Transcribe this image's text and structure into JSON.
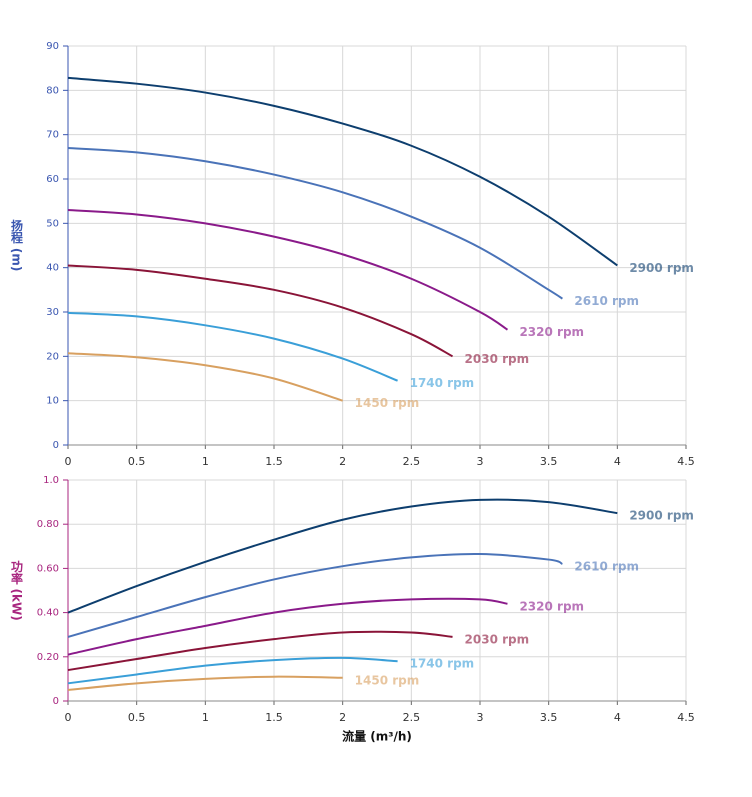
{
  "chart_data": [
    {
      "type": "line",
      "y_label": "扬程 (m)",
      "axis_color": "#3a56b0",
      "xlim": [
        0,
        4.5
      ],
      "xticks": [
        0,
        0.5,
        1,
        1.5,
        2,
        2.5,
        3,
        3.5,
        4,
        4.5
      ],
      "ylim": [
        0,
        90
      ],
      "yticks": [
        0,
        10,
        20,
        30,
        40,
        50,
        60,
        70,
        80,
        90
      ],
      "grid": true,
      "series": [
        {
          "name": "2900 rpm",
          "color": "#0d3e6e",
          "x": [
            0,
            0.5,
            1,
            1.5,
            2,
            2.5,
            3,
            3.5,
            4
          ],
          "values": [
            82.8,
            81.5,
            79.5,
            76.5,
            72.5,
            67.5,
            60.5,
            51.5,
            40.5
          ]
        },
        {
          "name": "2610 rpm",
          "color": "#4a73b8",
          "x": [
            0,
            0.5,
            1,
            1.5,
            2,
            2.5,
            3,
            3.5,
            3.6
          ],
          "values": [
            67,
            66,
            64,
            61,
            57,
            51.5,
            44.5,
            35,
            33
          ]
        },
        {
          "name": "2320 rpm",
          "color": "#8a1a8a",
          "x": [
            0,
            0.5,
            1,
            1.5,
            2,
            2.5,
            3,
            3.2
          ],
          "values": [
            53,
            52,
            50,
            47,
            43,
            37.5,
            30,
            26
          ]
        },
        {
          "name": "2030 rpm",
          "color": "#8a1438",
          "x": [
            0,
            0.5,
            1,
            1.5,
            2,
            2.5,
            2.8
          ],
          "values": [
            40.5,
            39.5,
            37.5,
            35,
            31,
            25,
            20
          ]
        },
        {
          "name": "1740 rpm",
          "color": "#3a9fd8",
          "x": [
            0,
            0.5,
            1,
            1.5,
            2,
            2.4
          ],
          "values": [
            29.8,
            29,
            27,
            24,
            19.5,
            14.5
          ]
        },
        {
          "name": "1450 rpm",
          "color": "#d8a060",
          "x": [
            0,
            0.5,
            1,
            1.5,
            2
          ],
          "values": [
            20.7,
            19.8,
            18,
            15,
            10
          ]
        }
      ]
    },
    {
      "type": "line",
      "y_label": "功率 (kW)",
      "x_label": "流量 (m³/h)",
      "axis_color": "#a8267f",
      "xlim": [
        0,
        4.5
      ],
      "xticks": [
        0,
        0.5,
        1,
        1.5,
        2,
        2.5,
        3,
        3.5,
        4,
        4.5
      ],
      "ylim": [
        0,
        1
      ],
      "yticks": [
        0,
        {
          "value": 0.2,
          "label": "0.20"
        },
        {
          "value": 0.4,
          "label": "0.40"
        },
        {
          "value": 0.6,
          "label": "0.60"
        },
        {
          "value": 0.8,
          "label": "0.80"
        },
        {
          "value": 1,
          "label": "1.0"
        }
      ],
      "grid": true,
      "series": [
        {
          "name": "2900 rpm",
          "color": "#0d3e6e",
          "x": [
            0,
            0.5,
            1,
            1.5,
            2,
            2.5,
            3,
            3.5,
            4
          ],
          "values": [
            0.4,
            0.52,
            0.63,
            0.73,
            0.82,
            0.88,
            0.91,
            0.9,
            0.85
          ]
        },
        {
          "name": "2610 rpm",
          "color": "#4a73b8",
          "x": [
            0,
            0.5,
            1,
            1.5,
            2,
            2.5,
            3,
            3.5,
            3.6
          ],
          "values": [
            0.29,
            0.38,
            0.47,
            0.55,
            0.61,
            0.65,
            0.665,
            0.64,
            0.62
          ]
        },
        {
          "name": "2320 rpm",
          "color": "#8a1a8a",
          "x": [
            0,
            0.5,
            1,
            1.5,
            2,
            2.5,
            3,
            3.2
          ],
          "values": [
            0.21,
            0.28,
            0.34,
            0.4,
            0.44,
            0.46,
            0.46,
            0.44
          ]
        },
        {
          "name": "2030 rpm",
          "color": "#8a1438",
          "x": [
            0,
            0.5,
            1,
            1.5,
            2,
            2.5,
            2.8
          ],
          "values": [
            0.14,
            0.19,
            0.24,
            0.28,
            0.31,
            0.31,
            0.29
          ]
        },
        {
          "name": "1740 rpm",
          "color": "#3a9fd8",
          "x": [
            0,
            0.5,
            1,
            1.5,
            2,
            2.4
          ],
          "values": [
            0.08,
            0.12,
            0.16,
            0.185,
            0.195,
            0.18
          ]
        },
        {
          "name": "1450 rpm",
          "color": "#d8a060",
          "x": [
            0,
            0.5,
            1,
            1.5,
            2
          ],
          "values": [
            0.05,
            0.08,
            0.1,
            0.11,
            0.105
          ]
        }
      ]
    }
  ]
}
